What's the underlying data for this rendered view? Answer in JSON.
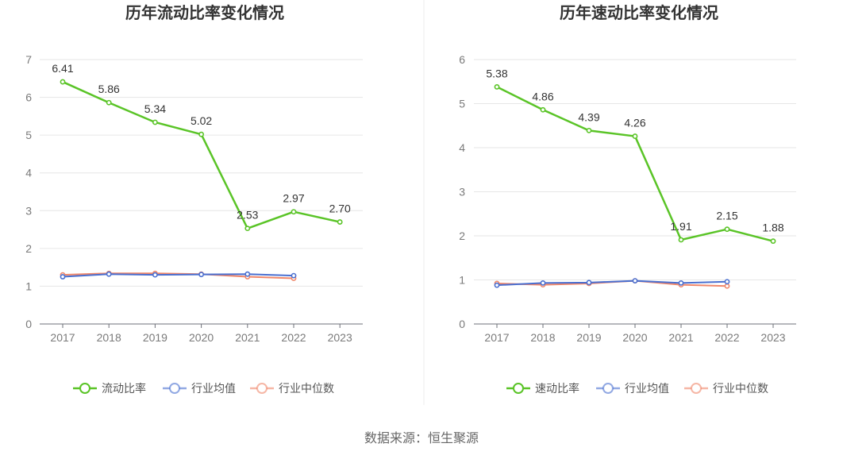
{
  "source_text": "数据来源：恒生聚源",
  "chart_data": [
    {
      "type": "line",
      "title": "历年流动比率变化情况",
      "categories": [
        "2017",
        "2018",
        "2019",
        "2020",
        "2021",
        "2022",
        "2023"
      ],
      "ylim": [
        0,
        7
      ],
      "yticks": [
        "0",
        "1",
        "2",
        "3",
        "4",
        "5",
        "6",
        "7"
      ],
      "grid": true,
      "legend_position": "bottom",
      "series": [
        {
          "name": "流动比率",
          "color": "#5ac427",
          "values": [
            6.41,
            5.86,
            5.34,
            5.02,
            2.53,
            2.97,
            2.7
          ],
          "labels": [
            "6.41",
            "5.86",
            "5.34",
            "5.02",
            "2.53",
            "2.97",
            "2.70"
          ]
        },
        {
          "name": "行业均值",
          "color": "#4a6fd0",
          "values": [
            1.25,
            1.32,
            1.3,
            1.31,
            1.32,
            1.28,
            null
          ]
        },
        {
          "name": "行业中位数",
          "color": "#f0876a",
          "values": [
            1.3,
            1.34,
            1.34,
            1.32,
            1.25,
            1.21,
            null
          ]
        }
      ]
    },
    {
      "type": "line",
      "title": "历年速动比率变化情况",
      "categories": [
        "2017",
        "2018",
        "2019",
        "2020",
        "2021",
        "2022",
        "2023"
      ],
      "ylim": [
        0,
        6
      ],
      "yticks": [
        "0",
        "1",
        "2",
        "3",
        "4",
        "5",
        "6"
      ],
      "grid": true,
      "legend_position": "bottom",
      "series": [
        {
          "name": "速动比率",
          "color": "#5ac427",
          "values": [
            5.38,
            4.86,
            4.39,
            4.26,
            1.91,
            2.15,
            1.88
          ],
          "labels": [
            "5.38",
            "4.86",
            "4.39",
            "4.26",
            "1.91",
            "2.15",
            "1.88"
          ]
        },
        {
          "name": "行业均值",
          "color": "#4a6fd0",
          "values": [
            0.88,
            0.93,
            0.94,
            0.98,
            0.93,
            0.96,
            null
          ]
        },
        {
          "name": "行业中位数",
          "color": "#f0876a",
          "values": [
            0.92,
            0.89,
            0.92,
            0.98,
            0.89,
            0.86,
            null
          ]
        }
      ]
    }
  ]
}
